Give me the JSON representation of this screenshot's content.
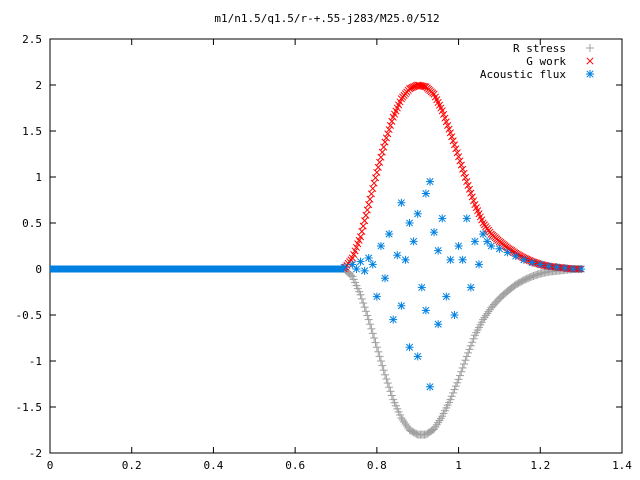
{
  "chart_data": {
    "type": "scatter",
    "title": "m1/n1.5/q1.5/r-+.55-j283/M25.0/512",
    "xlabel": "",
    "ylabel": "",
    "xlim": [
      0,
      1.4
    ],
    "ylim": [
      -2,
      2.5
    ],
    "x_ticks": [
      "0",
      "0.2",
      "0.4",
      "0.6",
      "0.8",
      "1",
      "1.2",
      "1.4"
    ],
    "y_ticks": [
      "-2",
      "-1.5",
      "-1",
      "-0.5",
      "0",
      "0.5",
      "1",
      "1.5",
      "2",
      "2.5"
    ],
    "grid": false,
    "legend_position": "top-right",
    "series": [
      {
        "name": "R stress",
        "marker": "plus",
        "color": "#a0a0a0",
        "x": [
          0.72,
          0.74,
          0.76,
          0.78,
          0.8,
          0.82,
          0.84,
          0.86,
          0.88,
          0.9,
          0.92,
          0.94,
          0.96,
          0.98,
          1.0,
          1.02,
          1.04,
          1.06,
          1.08,
          1.1,
          1.12,
          1.14,
          1.16,
          1.18,
          1.2,
          1.22,
          1.24,
          1.26,
          1.28,
          1.3
        ],
        "y": [
          0.0,
          -0.08,
          -0.28,
          -0.55,
          -0.85,
          -1.15,
          -1.42,
          -1.62,
          -1.75,
          -1.8,
          -1.8,
          -1.74,
          -1.6,
          -1.42,
          -1.2,
          -0.95,
          -0.72,
          -0.55,
          -0.42,
          -0.32,
          -0.24,
          -0.17,
          -0.12,
          -0.08,
          -0.05,
          -0.03,
          -0.02,
          -0.01,
          0.0,
          0.0
        ]
      },
      {
        "name": "G work",
        "marker": "cross",
        "color": "#ff0000",
        "x": [
          0.72,
          0.74,
          0.76,
          0.78,
          0.8,
          0.82,
          0.84,
          0.86,
          0.88,
          0.9,
          0.92,
          0.94,
          0.96,
          0.98,
          1.0,
          1.02,
          1.04,
          1.06,
          1.08,
          1.1,
          1.12,
          1.14,
          1.16,
          1.18,
          1.2,
          1.22,
          1.24,
          1.26,
          1.28,
          1.3
        ],
        "y": [
          0.0,
          0.12,
          0.35,
          0.7,
          1.05,
          1.38,
          1.65,
          1.85,
          1.96,
          2.0,
          1.98,
          1.9,
          1.72,
          1.48,
          1.22,
          0.95,
          0.7,
          0.5,
          0.38,
          0.3,
          0.23,
          0.17,
          0.12,
          0.08,
          0.05,
          0.03,
          0.02,
          0.01,
          0.0,
          0.0
        ]
      },
      {
        "name": "Acoustic flux",
        "marker": "star",
        "color": "#0080e0",
        "x": [
          0.72,
          0.74,
          0.75,
          0.76,
          0.77,
          0.78,
          0.79,
          0.8,
          0.81,
          0.82,
          0.83,
          0.84,
          0.85,
          0.86,
          0.86,
          0.87,
          0.88,
          0.88,
          0.89,
          0.9,
          0.9,
          0.91,
          0.92,
          0.92,
          0.93,
          0.93,
          0.94,
          0.95,
          0.95,
          0.96,
          0.97,
          0.98,
          0.99,
          1.0,
          1.01,
          1.02,
          1.03,
          1.04,
          1.05,
          1.06,
          1.07,
          1.08,
          1.1,
          1.12,
          1.14,
          1.16,
          1.18,
          1.2,
          1.22,
          1.24,
          1.26,
          1.28,
          1.3
        ],
        "y": [
          0.02,
          0.05,
          0.0,
          0.08,
          -0.02,
          0.12,
          0.05,
          -0.3,
          0.25,
          -0.1,
          0.38,
          -0.55,
          0.15,
          0.72,
          -0.4,
          0.1,
          0.5,
          -0.85,
          0.3,
          0.6,
          -0.95,
          -0.2,
          0.82,
          -0.45,
          0.95,
          -1.28,
          0.4,
          -0.6,
          0.2,
          0.55,
          -0.3,
          0.1,
          -0.5,
          0.25,
          0.1,
          0.55,
          -0.2,
          0.3,
          0.05,
          0.38,
          0.3,
          0.25,
          0.22,
          0.18,
          0.14,
          0.1,
          0.07,
          0.05,
          0.03,
          0.02,
          0.01,
          0.0,
          0.0
        ],
        "baseline": {
          "x_start": 0.0,
          "x_end": 0.72,
          "y": 0.0
        }
      }
    ]
  }
}
